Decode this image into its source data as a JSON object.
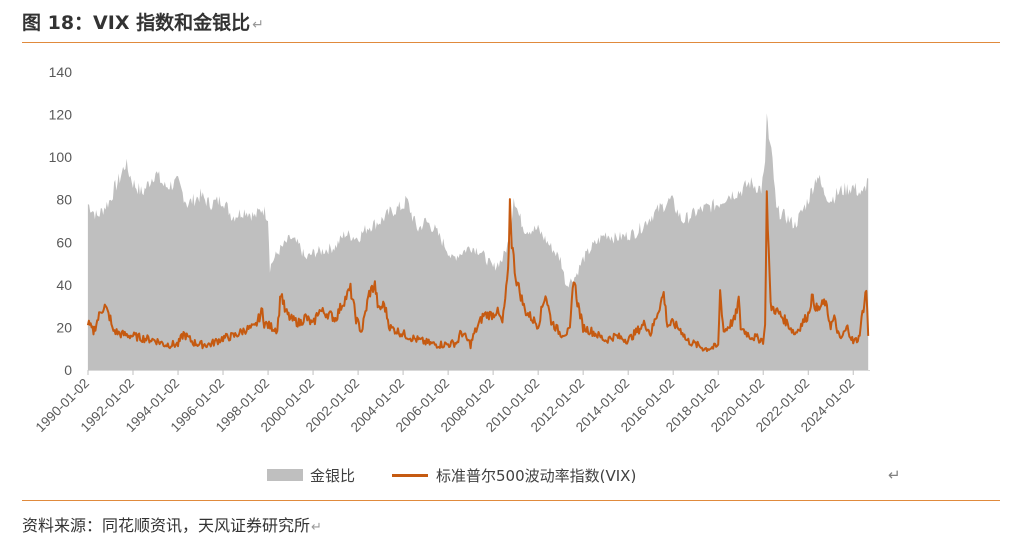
{
  "header": {
    "title": "图 18：VIX 指数和金银比",
    "return_mark": "↵"
  },
  "footer": {
    "source": "资料来源：同花顺资讯，天风证券研究所",
    "return_mark": "↵"
  },
  "colors": {
    "gold_silver_area": "#bfbfbf",
    "vix_line": "#c55a11",
    "rule": "#e08a3c"
  },
  "chart_data": {
    "type": "area",
    "title": "",
    "xlabel": "",
    "ylabel": "",
    "ylim": [
      0,
      140
    ],
    "yticks": [
      0,
      20,
      40,
      60,
      80,
      100,
      120,
      140
    ],
    "grid": false,
    "legend_position": "bottom",
    "xtick_labels": [
      "1990-01-02",
      "1992-01-02",
      "1994-01-02",
      "1996-01-02",
      "1998-01-02",
      "2000-01-02",
      "2002-01-02",
      "2004-01-02",
      "2006-01-02",
      "2008-01-02",
      "2010-01-02",
      "2012-01-02",
      "2014-01-02",
      "2016-01-02",
      "2018-01-02",
      "2020-01-02",
      "2022-01-02",
      "2024-01-02"
    ],
    "x_range": [
      "1990-01-02",
      "2024-09-30"
    ],
    "series": [
      {
        "name": "金银比",
        "type": "area",
        "color": "#bfbfbf",
        "x": [
          "1990-01",
          "1990-06",
          "1991-01",
          "1991-03",
          "1991-06",
          "1991-09",
          "1992-01",
          "1992-06",
          "1993-01",
          "1993-03",
          "1993-06",
          "1994-01",
          "1994-06",
          "1995-01",
          "1995-06",
          "1996-01",
          "1996-06",
          "1997-01",
          "1997-06",
          "1997-10",
          "1998-01",
          "1998-02",
          "1998-04",
          "1998-07",
          "1999-01",
          "1999-06",
          "1999-09",
          "2000-01",
          "2000-06",
          "2001-01",
          "2001-06",
          "2002-01",
          "2002-06",
          "2003-01",
          "2003-06",
          "2004-01",
          "2004-03",
          "2004-06",
          "2004-09",
          "2005-01",
          "2005-06",
          "2006-01",
          "2006-03",
          "2006-06",
          "2007-01",
          "2007-06",
          "2008-01",
          "2008-06",
          "2008-10",
          "2008-12",
          "2009-03",
          "2009-06",
          "2010-01",
          "2010-06",
          "2011-01",
          "2011-04",
          "2011-09",
          "2012-01",
          "2012-06",
          "2013-01",
          "2013-06",
          "2013-12",
          "2014-06",
          "2015-01",
          "2015-06",
          "2015-12",
          "2016-06",
          "2017-01",
          "2017-06",
          "2018-01",
          "2018-06",
          "2019-01",
          "2019-06",
          "2019-12",
          "2020-02",
          "2020-03",
          "2020-04",
          "2020-06",
          "2020-08",
          "2021-01",
          "2021-06",
          "2022-01",
          "2022-06",
          "2022-09",
          "2023-01",
          "2023-06",
          "2024-01",
          "2024-06",
          "2024-09"
        ],
        "values": [
          78,
          72,
          80,
          85,
          90,
          97,
          88,
          83,
          93,
          90,
          86,
          88,
          78,
          82,
          78,
          80,
          72,
          75,
          72,
          76,
          72,
          48,
          52,
          56,
          62,
          58,
          52,
          55,
          56,
          58,
          64,
          62,
          67,
          70,
          74,
          77,
          80,
          72,
          66,
          70,
          66,
          56,
          52,
          54,
          58,
          56,
          48,
          52,
          62,
          82,
          72,
          66,
          66,
          60,
          52,
          40,
          44,
          52,
          58,
          64,
          62,
          63,
          65,
          72,
          76,
          80,
          70,
          74,
          76,
          78,
          82,
          84,
          88,
          85,
          95,
          122,
          108,
          98,
          75,
          72,
          68,
          80,
          92,
          84,
          80,
          84,
          86,
          82,
          90
        ]
      },
      {
        "name": "标准普尔500波动率指数(VIX)",
        "type": "line",
        "color": "#c55a11",
        "x": [
          "1990-01",
          "1990-04",
          "1990-08",
          "1990-10",
          "1991-01",
          "1991-02",
          "1991-06",
          "1992-01",
          "1992-06",
          "1993-01",
          "1993-06",
          "1994-01",
          "1994-04",
          "1994-09",
          "1995-01",
          "1995-06",
          "1996-01",
          "1996-07",
          "1997-01",
          "1997-06",
          "1997-10",
          "1997-11",
          "1998-01",
          "1998-06",
          "1998-08",
          "1998-10",
          "1999-01",
          "1999-06",
          "1999-09",
          "2000-01",
          "2000-04",
          "2000-10",
          "2001-01",
          "2001-04",
          "2001-09",
          "2001-12",
          "2002-03",
          "2002-07",
          "2002-10",
          "2002-12",
          "2003-03",
          "2003-06",
          "2004-01",
          "2004-06",
          "2005-01",
          "2005-06",
          "2006-01",
          "2006-06",
          "2006-08",
          "2007-01",
          "2007-03",
          "2007-08",
          "2008-01",
          "2008-03",
          "2008-06",
          "2008-09",
          "2008-10",
          "2008-11",
          "2009-01",
          "2009-06",
          "2010-01",
          "2010-05",
          "2010-08",
          "2011-01",
          "2011-06",
          "2011-08",
          "2011-10",
          "2012-01",
          "2012-06",
          "2013-01",
          "2013-06",
          "2014-01",
          "2014-10",
          "2015-01",
          "2015-08",
          "2015-10",
          "2016-01",
          "2016-06",
          "2016-08",
          "2017-01",
          "2017-06",
          "2018-01",
          "2018-02",
          "2018-04",
          "2018-10",
          "2018-12",
          "2019-01",
          "2019-06",
          "2020-01",
          "2020-02",
          "2020-03",
          "2020-05",
          "2020-09",
          "2021-01",
          "2021-06",
          "2022-01",
          "2022-03",
          "2022-06",
          "2022-10",
          "2023-01",
          "2023-03",
          "2023-06",
          "2023-10",
          "2024-01",
          "2024-04",
          "2024-08",
          "2024-09"
        ],
        "values": [
          22,
          18,
          28,
          30,
          24,
          19,
          17,
          16,
          15,
          14,
          12,
          12,
          17,
          13,
          12,
          12,
          15,
          16,
          19,
          20,
          28,
          22,
          21,
          19,
          37,
          28,
          24,
          22,
          25,
          21,
          28,
          26,
          24,
          30,
          38,
          24,
          18,
          36,
          40,
          28,
          31,
          20,
          17,
          15,
          13,
          12,
          12,
          13,
          18,
          12,
          17,
          26,
          26,
          28,
          22,
          45,
          79,
          60,
          44,
          28,
          21,
          36,
          23,
          17,
          18,
          44,
          32,
          20,
          18,
          14,
          16,
          14,
          22,
          17,
          36,
          21,
          22,
          18,
          14,
          12,
          10,
          11,
          37,
          18,
          24,
          33,
          20,
          16,
          14,
          20,
          82,
          30,
          27,
          23,
          17,
          26,
          34,
          28,
          32,
          21,
          24,
          14,
          20,
          13,
          15,
          38,
          16
        ]
      }
    ]
  },
  "legend": [
    {
      "label": "金银比",
      "kind": "area"
    },
    {
      "label": "标准普尔500波动率指数(VIX)",
      "kind": "line"
    }
  ],
  "icons": {
    "return_icon": "↵"
  }
}
